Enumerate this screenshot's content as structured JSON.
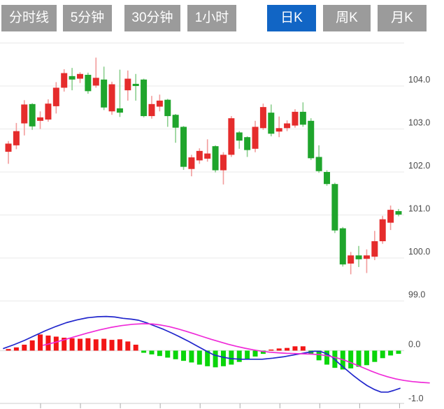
{
  "toolbar": {
    "tabs": [
      {
        "label": "分时线",
        "active": false
      },
      {
        "label": "5分钟",
        "active": false
      },
      {
        "label": "30分钟",
        "active": false
      },
      {
        "label": "1小时",
        "active": false
      },
      {
        "label": "日K",
        "active": true
      },
      {
        "label": "周K",
        "active": false
      },
      {
        "label": "月K",
        "active": false
      }
    ],
    "active_tab": "日K"
  },
  "colors": {
    "tab_bg": "#9b9b9b",
    "tab_active_bg": "#1165c5",
    "tab_text": "#ffffff",
    "candle_up": "#e52c2c",
    "candle_up_wick": "#f29c9c",
    "candle_down": "#1fa52c",
    "candle_down_wick": "#8ccf8f",
    "macd_bar_positive": "#f21515",
    "macd_bar_negative": "#0ad50a",
    "dif_line": "#2126cc",
    "dea_line": "#ef2ad8",
    "gridline": "#e9e9e9",
    "axis_text": "#4a4a4a",
    "baseline": "#cccccc",
    "tick": "#aaaaaa"
  },
  "chart_data": [
    {
      "type": "candlestick",
      "title": "",
      "convention": "red = close above open (up), green = close below open (down)",
      "y_axis": {
        "position": "right",
        "grid_values": [
          105,
          104,
          103,
          102,
          101,
          100,
          99
        ],
        "labels": [
          {
            "text": "104.0",
            "value": 104
          },
          {
            "text": "103.0",
            "value": 103
          },
          {
            "text": "102.0",
            "value": 102
          },
          {
            "text": "101.0",
            "value": 101
          },
          {
            "text": "100.0",
            "value": 100
          },
          {
            "text": "99.0",
            "value": 99
          }
        ]
      },
      "candles_ohlc": [
        [
          102.47,
          102.72,
          102.19,
          102.66
        ],
        [
          102.62,
          103.14,
          102.53,
          102.95
        ],
        [
          103.13,
          103.67,
          102.85,
          103.57
        ],
        [
          103.58,
          103.6,
          102.98,
          103.06
        ],
        [
          103.19,
          103.41,
          103.0,
          103.27
        ],
        [
          103.22,
          103.69,
          103.17,
          103.59
        ],
        [
          103.53,
          104.09,
          103.36,
          103.96
        ],
        [
          103.96,
          104.39,
          103.87,
          104.3
        ],
        [
          104.23,
          104.42,
          103.9,
          104.15
        ],
        [
          104.17,
          104.32,
          104.07,
          104.28
        ],
        [
          104.26,
          104.31,
          103.82,
          103.88
        ],
        [
          104.01,
          104.66,
          103.96,
          104.19
        ],
        [
          104.15,
          104.45,
          103.44,
          103.5
        ],
        [
          103.41,
          104.1,
          103.33,
          104.04
        ],
        [
          103.48,
          104.38,
          103.28,
          103.38
        ],
        [
          103.9,
          104.36,
          103.66,
          104.17
        ],
        [
          104.05,
          104.28,
          103.66,
          104.0
        ],
        [
          104.15,
          104.17,
          103.27,
          103.3
        ],
        [
          103.3,
          103.77,
          103.24,
          103.58
        ],
        [
          103.52,
          103.8,
          103.41,
          103.66
        ],
        [
          103.68,
          103.7,
          103.05,
          103.3
        ],
        [
          103.33,
          103.35,
          102.68,
          103.03
        ],
        [
          103.05,
          103.07,
          102.05,
          102.12
        ],
        [
          102.07,
          102.4,
          101.9,
          102.34
        ],
        [
          102.27,
          102.55,
          102.19,
          102.49
        ],
        [
          102.31,
          102.76,
          102.24,
          102.43
        ],
        [
          102.6,
          102.62,
          101.99,
          102.04
        ],
        [
          102.04,
          102.46,
          101.71,
          102.4
        ],
        [
          102.4,
          103.3,
          102.35,
          103.25
        ],
        [
          102.92,
          102.95,
          102.54,
          102.73
        ],
        [
          102.81,
          102.83,
          102.35,
          102.51
        ],
        [
          102.54,
          103.19,
          102.46,
          103.05
        ],
        [
          103.02,
          103.59,
          102.98,
          103.51
        ],
        [
          103.38,
          103.57,
          102.83,
          102.89
        ],
        [
          102.94,
          103.29,
          102.81,
          103.02
        ],
        [
          103.02,
          103.2,
          102.95,
          103.13
        ],
        [
          103.08,
          103.46,
          103.03,
          103.4
        ],
        [
          103.4,
          103.62,
          103.05,
          103.1
        ],
        [
          103.19,
          103.25,
          102.28,
          102.32
        ],
        [
          102.35,
          102.62,
          101.98,
          102.02
        ],
        [
          102.0,
          102.04,
          101.68,
          101.72
        ],
        [
          101.72,
          101.75,
          100.58,
          100.64
        ],
        [
          100.69,
          100.72,
          99.8,
          99.85
        ],
        [
          99.87,
          100.14,
          99.62,
          100.06
        ],
        [
          100.06,
          100.28,
          99.79,
          99.97
        ],
        [
          99.98,
          100.2,
          99.65,
          100.06
        ],
        [
          100.03,
          100.63,
          99.95,
          100.39
        ],
        [
          100.39,
          100.98,
          100.33,
          100.9
        ],
        [
          100.82,
          101.22,
          100.65,
          101.12
        ],
        [
          101.09,
          101.14,
          100.97,
          101.01
        ]
      ]
    },
    {
      "type": "macd",
      "y_axis": {
        "position": "right",
        "labels": [
          {
            "text": "0.0",
            "value": 0
          },
          {
            "text": "-1.0",
            "value": -1
          }
        ]
      },
      "x_axis": {
        "tick_count": 10,
        "labels": []
      },
      "histogram": [
        0.03,
        0.06,
        0.11,
        0.19,
        0.3,
        0.28,
        0.26,
        0.24,
        0.23,
        0.22,
        0.23,
        0.21,
        0.22,
        0.2,
        0.21,
        0.17,
        0.11,
        -0.04,
        -0.07,
        -0.1,
        -0.13,
        -0.16,
        -0.19,
        -0.22,
        -0.26,
        -0.29,
        -0.31,
        -0.29,
        -0.26,
        -0.21,
        -0.16,
        -0.11,
        -0.06,
        0.02,
        0.04,
        0.05,
        0.08,
        0.08,
        -0.06,
        -0.18,
        -0.26,
        -0.32,
        -0.35,
        -0.33,
        -0.3,
        -0.27,
        -0.21,
        -0.14,
        -0.09,
        -0.06
      ],
      "dif_line": {
        "name": "DIF",
        "points": [
          [
            5,
            0.04
          ],
          [
            20,
            0.11
          ],
          [
            35,
            0.19
          ],
          [
            50,
            0.28
          ],
          [
            65,
            0.37
          ],
          [
            80,
            0.45
          ],
          [
            95,
            0.52
          ],
          [
            110,
            0.57
          ],
          [
            125,
            0.61
          ],
          [
            140,
            0.63
          ],
          [
            152,
            0.635
          ],
          [
            164,
            0.625
          ],
          [
            176,
            0.6
          ],
          [
            188,
            0.585
          ],
          [
            198,
            0.565
          ],
          [
            210,
            0.515
          ],
          [
            222,
            0.455
          ],
          [
            234,
            0.395
          ],
          [
            246,
            0.325
          ],
          [
            258,
            0.25
          ],
          [
            270,
            0.17
          ],
          [
            282,
            0.085
          ],
          [
            294,
            0.0
          ],
          [
            306,
            -0.08
          ],
          [
            318,
            -0.12
          ],
          [
            330,
            -0.15
          ],
          [
            345,
            -0.16
          ],
          [
            360,
            -0.16
          ],
          [
            375,
            -0.16
          ],
          [
            390,
            -0.14
          ],
          [
            405,
            -0.115
          ],
          [
            420,
            -0.08
          ],
          [
            435,
            -0.045
          ],
          [
            450,
            -0.01
          ],
          [
            458,
            -0.015
          ],
          [
            466,
            -0.05
          ],
          [
            475,
            -0.12
          ],
          [
            485,
            -0.24
          ],
          [
            495,
            -0.35
          ],
          [
            505,
            -0.46
          ],
          [
            515,
            -0.56
          ],
          [
            525,
            -0.65
          ],
          [
            535,
            -0.72
          ],
          [
            545,
            -0.77
          ],
          [
            555,
            -0.77
          ],
          [
            563,
            -0.74
          ],
          [
            572,
            -0.7
          ]
        ]
      },
      "dea_line": {
        "name": "DEA",
        "points": [
          [
            62,
            0.1
          ],
          [
            78,
            0.15
          ],
          [
            94,
            0.21
          ],
          [
            110,
            0.27
          ],
          [
            126,
            0.33
          ],
          [
            142,
            0.385
          ],
          [
            158,
            0.43
          ],
          [
            174,
            0.465
          ],
          [
            190,
            0.49
          ],
          [
            205,
            0.5
          ],
          [
            218,
            0.495
          ],
          [
            230,
            0.475
          ],
          [
            242,
            0.445
          ],
          [
            254,
            0.405
          ],
          [
            266,
            0.36
          ],
          [
            278,
            0.31
          ],
          [
            290,
            0.26
          ],
          [
            302,
            0.21
          ],
          [
            314,
            0.165
          ],
          [
            326,
            0.12
          ],
          [
            338,
            0.08
          ],
          [
            350,
            0.045
          ],
          [
            362,
            0.015
          ],
          [
            374,
            -0.01
          ],
          [
            386,
            -0.03
          ],
          [
            398,
            -0.04
          ],
          [
            410,
            -0.05
          ],
          [
            422,
            -0.055
          ],
          [
            434,
            -0.06
          ],
          [
            446,
            -0.065
          ],
          [
            458,
            -0.075
          ],
          [
            470,
            -0.1
          ],
          [
            482,
            -0.135
          ],
          [
            494,
            -0.185
          ],
          [
            506,
            -0.245
          ],
          [
            518,
            -0.31
          ],
          [
            530,
            -0.375
          ],
          [
            542,
            -0.435
          ],
          [
            554,
            -0.485
          ],
          [
            566,
            -0.525
          ],
          [
            578,
            -0.555
          ],
          [
            590,
            -0.575
          ],
          [
            602,
            -0.59
          ],
          [
            614,
            -0.6
          ]
        ]
      }
    }
  ]
}
